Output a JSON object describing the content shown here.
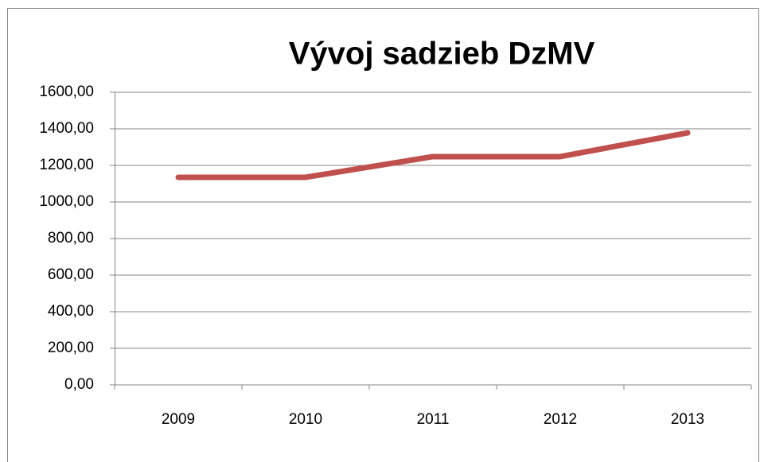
{
  "chart_data": {
    "type": "line",
    "title": "Vývoj sadzieb DzMV",
    "categories": [
      "2009",
      "2010",
      "2011",
      "2012",
      "2013"
    ],
    "series": [
      {
        "name": "DzMV",
        "color": "#c0504d",
        "values": [
          1135,
          1135,
          1248,
          1248,
          1378
        ]
      }
    ],
    "ylim": [
      0,
      1600
    ],
    "yticks": [
      {
        "value": 0,
        "label": "0,00"
      },
      {
        "value": 200,
        "label": "200,00"
      },
      {
        "value": 400,
        "label": "400,00"
      },
      {
        "value": 600,
        "label": "600,00"
      },
      {
        "value": 800,
        "label": "800,00"
      },
      {
        "value": 1000,
        "label": "1000,00"
      },
      {
        "value": 1200,
        "label": "1200,00"
      },
      {
        "value": 1400,
        "label": "1400,00"
      },
      {
        "value": 1600,
        "label": "1600,00"
      }
    ],
    "grid": true,
    "legend": false
  }
}
